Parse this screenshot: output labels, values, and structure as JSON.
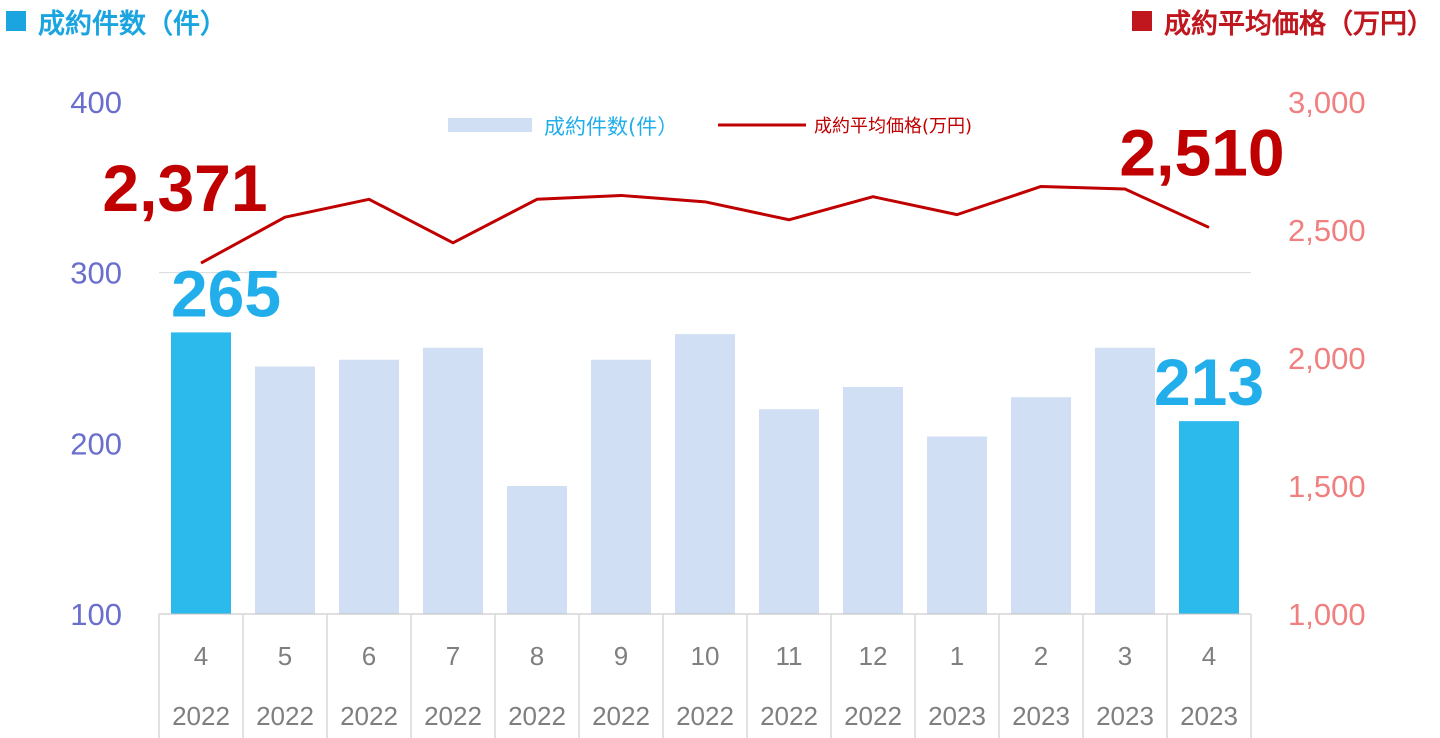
{
  "header": {
    "left_title": "成約件数（件）",
    "right_title": "成約平均価格（万円）"
  },
  "chart_data": {
    "type": "bar+line",
    "categories": [
      {
        "month": "4",
        "year": "2022"
      },
      {
        "month": "5",
        "year": "2022"
      },
      {
        "month": "6",
        "year": "2022"
      },
      {
        "month": "7",
        "year": "2022"
      },
      {
        "month": "8",
        "year": "2022"
      },
      {
        "month": "9",
        "year": "2022"
      },
      {
        "month": "10",
        "year": "2022"
      },
      {
        "month": "11",
        "year": "2022"
      },
      {
        "month": "12",
        "year": "2022"
      },
      {
        "month": "1",
        "year": "2023"
      },
      {
        "month": "2",
        "year": "2023"
      },
      {
        "month": "3",
        "year": "2023"
      },
      {
        "month": "4",
        "year": "2023"
      }
    ],
    "series": [
      {
        "name": "成約件数(件）",
        "type": "bar",
        "axis": "left",
        "values": [
          265,
          245,
          249,
          256,
          175,
          249,
          264,
          220,
          233,
          204,
          227,
          256,
          213
        ],
        "highlight_indices": [
          0,
          12
        ]
      },
      {
        "name": "成約平均価格(万円)",
        "type": "line",
        "axis": "right",
        "values": [
          2371,
          2550,
          2620,
          2450,
          2620,
          2635,
          2610,
          2540,
          2630,
          2560,
          2670,
          2660,
          2510
        ]
      }
    ],
    "left_axis": {
      "ylim": [
        100,
        400
      ],
      "ticks": [
        "100",
        "200",
        "300",
        "400"
      ]
    },
    "right_axis": {
      "ylim": [
        1000,
        3000
      ],
      "ticks": [
        "1,000",
        "1,500",
        "2,000",
        "2,500",
        "3,000"
      ]
    },
    "annotations": [
      {
        "label": "265",
        "series": "bar",
        "index": 0
      },
      {
        "label": "213",
        "series": "bar",
        "index": 12
      },
      {
        "label": "2,371",
        "series": "line",
        "index": 0
      },
      {
        "label": "2,510",
        "series": "line",
        "index": 12
      }
    ],
    "grid": "horizontal at 300",
    "legend_position": "top-center"
  },
  "colors": {
    "bar_highlight": "#2CB9EC",
    "bar_normal": "#D0DFF3",
    "line": "#C00000",
    "left_axis_text": "#6A6ECC",
    "right_axis_text": "#F08080",
    "left_header": "#1AA5E0",
    "right_header": "#C0161E",
    "left_big_label": "#22AEEB",
    "right_big_label": "#C00000",
    "legend_bar_text": "#22AEEB",
    "legend_line_text": "#C00000"
  }
}
